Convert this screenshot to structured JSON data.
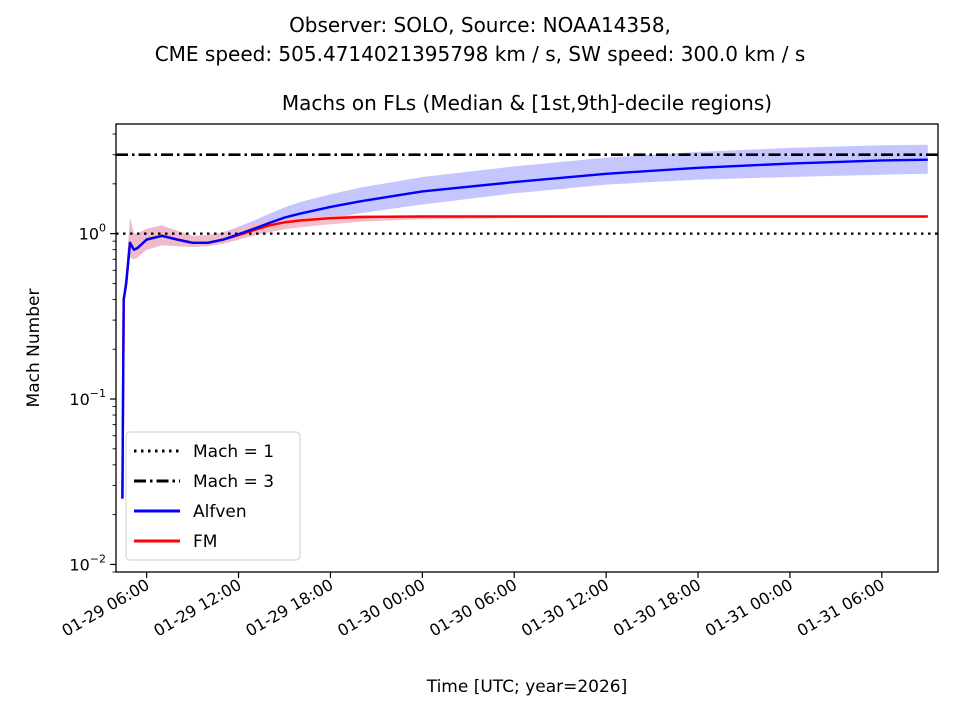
{
  "suptitle": {
    "line1": "Observer: SOLO, Source: NOAA14358,",
    "line2": "CME speed: 505.4714021395798 km / s, SW speed: 300.0 km / s"
  },
  "chart_data": {
    "type": "line",
    "title": "Machs on FLs (Median & [1st,9th]-decile regions)",
    "xlabel": "Time [UTC; year=2026]",
    "ylabel": "Mach Number",
    "yscale": "log",
    "ylim": [
      0.009,
      4.6
    ],
    "xlim": [
      "2026-01-29 04:00",
      "2026-01-31 09:40"
    ],
    "x_tick_labels": [
      "01-29 06:00",
      "01-29 12:00",
      "01-29 18:00",
      "01-30 00:00",
      "01-30 06:00",
      "01-30 12:00",
      "01-30 18:00",
      "01-31 00:00",
      "01-31 06:00"
    ],
    "x_tick_values": [
      "2026-01-29 06:00",
      "2026-01-29 12:00",
      "2026-01-29 18:00",
      "2026-01-30 00:00",
      "2026-01-30 06:00",
      "2026-01-30 12:00",
      "2026-01-30 18:00",
      "2026-01-31 00:00",
      "2026-01-31 06:00"
    ],
    "y_tick_values": [
      0.01,
      0.1,
      1
    ],
    "y_tick_labels": [
      {
        "base": "10",
        "exp": "−2"
      },
      {
        "base": "10",
        "exp": "−1"
      },
      {
        "base": "10",
        "exp": "0"
      }
    ],
    "reference_lines": [
      {
        "name": "Mach = 1",
        "y": 1,
        "style": "dotted",
        "color": "#000000"
      },
      {
        "name": "Mach = 3",
        "y": 3,
        "style": "dashdot",
        "color": "#000000"
      }
    ],
    "series": [
      {
        "name": "Alfven",
        "color": "#0000ff",
        "band_color": "#c0c0ff",
        "x": [
          "2026-01-29 04:25",
          "2026-01-29 04:30",
          "2026-01-29 04:40",
          "2026-01-29 04:55",
          "2026-01-29 05:10",
          "2026-01-29 05:25",
          "2026-01-29 06:00",
          "2026-01-29 07:00",
          "2026-01-29 08:00",
          "2026-01-29 09:00",
          "2026-01-29 10:00",
          "2026-01-29 11:00",
          "2026-01-29 12:00",
          "2026-01-29 13:00",
          "2026-01-29 14:00",
          "2026-01-29 15:00",
          "2026-01-29 16:00",
          "2026-01-29 18:00",
          "2026-01-29 20:00",
          "2026-01-30 00:00",
          "2026-01-30 06:00",
          "2026-01-30 12:00",
          "2026-01-30 18:00",
          "2026-01-31 00:00",
          "2026-01-31 06:00",
          "2026-01-31 09:00"
        ],
        "y": [
          0.025,
          0.4,
          0.5,
          0.88,
          0.8,
          0.82,
          0.92,
          0.97,
          0.92,
          0.88,
          0.88,
          0.92,
          0.99,
          1.07,
          1.16,
          1.25,
          1.32,
          1.45,
          1.57,
          1.8,
          2.05,
          2.3,
          2.5,
          2.65,
          2.77,
          2.8
        ],
        "y_low": [
          0.025,
          0.35,
          0.45,
          0.72,
          0.7,
          0.72,
          0.8,
          0.85,
          0.84,
          0.83,
          0.84,
          0.87,
          0.92,
          0.98,
          1.04,
          1.1,
          1.15,
          1.24,
          1.33,
          1.5,
          1.75,
          1.98,
          2.12,
          2.2,
          2.27,
          2.3
        ],
        "y_high": [
          0.025,
          0.45,
          0.6,
          1.25,
          1.0,
          1.0,
          1.07,
          1.12,
          1.04,
          0.97,
          0.98,
          1.02,
          1.1,
          1.2,
          1.32,
          1.44,
          1.55,
          1.73,
          1.9,
          2.2,
          2.55,
          2.88,
          3.12,
          3.3,
          3.42,
          3.45
        ]
      },
      {
        "name": "FM",
        "color": "#ff0000",
        "band_color": "#f4b8c4",
        "x": [
          "2026-01-29 04:25",
          "2026-01-29 04:30",
          "2026-01-29 04:40",
          "2026-01-29 04:55",
          "2026-01-29 05:10",
          "2026-01-29 05:25",
          "2026-01-29 06:00",
          "2026-01-29 07:00",
          "2026-01-29 08:00",
          "2026-01-29 09:00",
          "2026-01-29 10:00",
          "2026-01-29 11:00",
          "2026-01-29 12:00",
          "2026-01-29 13:00",
          "2026-01-29 14:00",
          "2026-01-29 15:00",
          "2026-01-29 16:00",
          "2026-01-29 18:00",
          "2026-01-29 20:00",
          "2026-01-30 00:00",
          "2026-01-30 06:00",
          "2026-01-30 12:00",
          "2026-01-30 18:00",
          "2026-01-31 00:00",
          "2026-01-31 06:00",
          "2026-01-31 09:00"
        ],
        "y": [
          0.025,
          0.4,
          0.5,
          0.88,
          0.8,
          0.82,
          0.92,
          0.97,
          0.92,
          0.88,
          0.88,
          0.92,
          0.98,
          1.05,
          1.12,
          1.17,
          1.2,
          1.24,
          1.26,
          1.27,
          1.27,
          1.27,
          1.27,
          1.27,
          1.27,
          1.27
        ],
        "y_low": [
          0.025,
          0.35,
          0.45,
          0.72,
          0.7,
          0.72,
          0.8,
          0.85,
          0.84,
          0.83,
          0.84,
          0.87,
          0.92,
          0.97,
          1.02,
          1.06,
          1.09,
          1.14,
          1.18,
          1.22,
          1.24,
          1.25,
          1.25,
          1.25,
          1.25,
          1.25
        ],
        "y_high": [
          0.025,
          0.45,
          0.6,
          1.25,
          1.0,
          1.0,
          1.07,
          1.12,
          1.04,
          0.97,
          0.98,
          1.02,
          1.08,
          1.14,
          1.2,
          1.24,
          1.26,
          1.28,
          1.29,
          1.29,
          1.29,
          1.29,
          1.29,
          1.29,
          1.29,
          1.29
        ]
      }
    ],
    "legend": {
      "placement": "lower-left",
      "entries": [
        {
          "label": "Mach = 1",
          "style": "dotted",
          "color": "#000000"
        },
        {
          "label": "Mach = 3",
          "style": "dashdot",
          "color": "#000000"
        },
        {
          "label": "Alfven",
          "style": "solid",
          "color": "#0000ff"
        },
        {
          "label": "FM",
          "style": "solid",
          "color": "#ff0000"
        }
      ]
    }
  }
}
